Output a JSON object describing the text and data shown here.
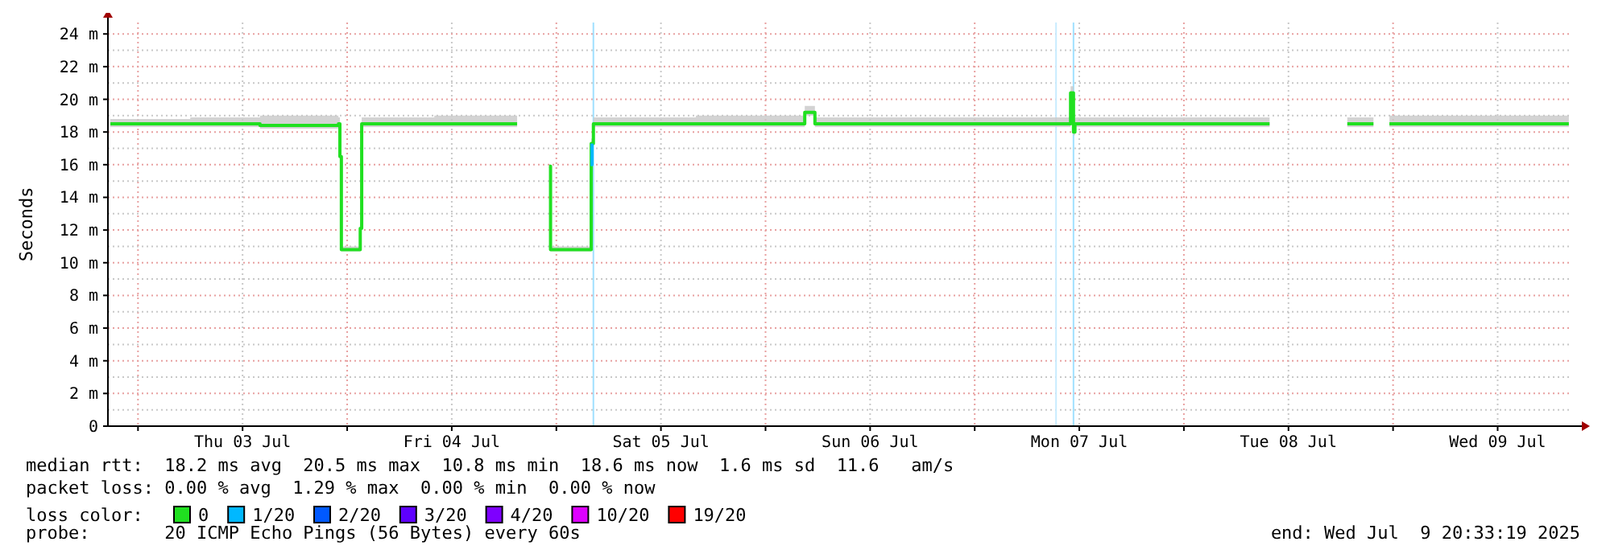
{
  "chart_data": {
    "type": "line",
    "ylabel": "Seconds",
    "ylim": [
      0,
      24.7
    ],
    "yticks": [
      0,
      {
        "value": 2,
        "label": "2 m"
      },
      {
        "value": 4,
        "label": "4 m"
      },
      {
        "value": 6,
        "label": "6 m"
      },
      {
        "value": 8,
        "label": "8 m"
      },
      {
        "value": 10,
        "label": "10 m"
      },
      {
        "value": 12,
        "label": "12 m"
      },
      {
        "value": 14,
        "label": "14 m"
      },
      {
        "value": 16,
        "label": "16 m"
      },
      {
        "value": 18,
        "label": "18 m"
      },
      {
        "value": 20,
        "label": "20 m"
      },
      {
        "value": 22,
        "label": "22 m"
      },
      {
        "value": 24,
        "label": "24 m"
      }
    ],
    "xlim": [
      "2025-07-02T20:33",
      "2025-07-09T20:33"
    ],
    "xticks": [
      {
        "value": "2025-07-03T00:00",
        "label": null
      },
      {
        "value": "2025-07-03T12:00",
        "label": "Thu 03 Jul"
      },
      {
        "value": "2025-07-04T00:00",
        "label": null
      },
      {
        "value": "2025-07-04T12:00",
        "label": "Fri 04 Jul"
      },
      {
        "value": "2025-07-05T00:00",
        "label": null
      },
      {
        "value": "2025-07-05T12:00",
        "label": "Sat 05 Jul"
      },
      {
        "value": "2025-07-06T00:00",
        "label": null
      },
      {
        "value": "2025-07-06T12:00",
        "label": "Sun 06 Jul"
      },
      {
        "value": "2025-07-07T00:00",
        "label": null
      },
      {
        "value": "2025-07-07T12:00",
        "label": "Mon 07 Jul"
      },
      {
        "value": "2025-07-08T00:00",
        "label": null
      },
      {
        "value": "2025-07-08T12:00",
        "label": "Tue 08 Jul"
      },
      {
        "value": "2025-07-09T00:00",
        "label": null
      },
      {
        "value": "2025-07-09T12:00",
        "label": "Wed 09 Jul"
      }
    ],
    "grid": true,
    "legend": "bottom",
    "legend_title": "loss color:",
    "line_style": "solid",
    "marker": "none",
    "x": [
      "2025-07-02T20:50",
      "2025-07-03T06:00",
      "2025-07-03T14:00",
      "2025-07-03T23:00",
      "2025-07-03T23:10",
      "2025-07-03T23:20",
      "2025-07-04T01:20",
      "2025-07-04T01:30",
      "2025-07-04T01:40",
      "2025-07-04T10:00",
      "2025-07-04T19:30",
      "2025-07-04T21:00",
      "2025-07-04T23:10",
      "2025-07-04T23:20",
      "2025-07-05T03:50",
      "2025-07-05T04:00",
      "2025-07-05T04:15",
      "2025-07-05T16:00",
      "2025-07-06T04:20",
      "2025-07-06T04:30",
      "2025-07-06T05:30",
      "2025-07-06T05:40",
      "2025-07-06T20:00",
      "2025-07-07T10:50",
      "2025-07-07T11:00",
      "2025-07-07T11:20",
      "2025-07-07T11:30",
      "2025-07-08T00:00",
      "2025-07-08T09:50",
      "2025-07-08T14:00",
      "2025-07-08T18:45",
      "2025-07-08T21:45",
      "2025-07-08T22:30",
      "2025-07-08T23:35",
      "2025-07-09T10:00",
      "2025-07-09T20:10"
    ],
    "series": [
      {
        "name": "0",
        "color": "#20e020",
        "values": [
          18.5,
          18.5,
          18.4,
          18.5,
          16.5,
          10.8,
          10.8,
          12.1,
          18.5,
          18.5,
          18.5,
          null,
          15.9,
          10.8,
          10.8,
          17.3,
          18.5,
          18.5,
          18.5,
          19.2,
          19.2,
          18.5,
          18.5,
          18.5,
          20.4,
          18.0,
          18.5,
          18.5,
          18.5,
          null,
          18.5,
          18.5,
          null,
          18.5,
          18.5,
          18.5
        ],
        "lower": [
          18.3,
          18.3,
          18.2,
          18.3,
          16.3,
          10.7,
          10.7,
          12.0,
          18.3,
          18.3,
          18.3,
          null,
          15.8,
          10.7,
          10.7,
          17.1,
          18.3,
          18.3,
          18.3,
          19.0,
          19.0,
          18.3,
          18.3,
          18.3,
          19.5,
          17.8,
          18.3,
          18.3,
          18.3,
          null,
          18.3,
          18.3,
          null,
          18.3,
          18.3,
          18.3
        ],
        "upper": [
          18.8,
          18.9,
          19.0,
          18.9,
          16.8,
          11.0,
          11.0,
          12.4,
          18.9,
          19.0,
          18.9,
          null,
          16.0,
          11.0,
          11.0,
          17.6,
          18.9,
          19.0,
          18.9,
          19.6,
          19.6,
          18.9,
          18.9,
          19.2,
          20.8,
          18.8,
          18.9,
          18.9,
          18.9,
          null,
          18.9,
          19.0,
          null,
          19.0,
          19.0,
          18.9
        ]
      },
      {
        "name": "1/20",
        "color": "#00b8ff",
        "x": [
          "2025-07-05T03:55",
          "2025-07-05T04:05"
        ],
        "values": [
          16.0,
          17.3
        ]
      },
      {
        "name": "2/20",
        "color": "#0059ff",
        "values": [
          null,
          null,
          null,
          null,
          null,
          null,
          null,
          null,
          null,
          null,
          null,
          null,
          null,
          null,
          null,
          null,
          null,
          null,
          null,
          null,
          null,
          null,
          null,
          null,
          null,
          null,
          null,
          null,
          null,
          null,
          null,
          null,
          null,
          null,
          null,
          null
        ]
      },
      {
        "name": "3/20",
        "color": "#5e00ff",
        "values": [
          null,
          null,
          null,
          null,
          null,
          null,
          null,
          null,
          null,
          null,
          null,
          null,
          null,
          null,
          null,
          null,
          null,
          null,
          null,
          null,
          null,
          null,
          null,
          null,
          null,
          null,
          null,
          null,
          null,
          null,
          null,
          null,
          null,
          null,
          null,
          null
        ]
      },
      {
        "name": "4/20",
        "color": "#7e00ff",
        "values": [
          null,
          null,
          null,
          null,
          null,
          null,
          null,
          null,
          null,
          null,
          null,
          null,
          null,
          null,
          null,
          null,
          null,
          null,
          null,
          null,
          null,
          null,
          null,
          null,
          null,
          null,
          null,
          null,
          null,
          null,
          null,
          null,
          null,
          null,
          null,
          null
        ]
      },
      {
        "name": "10/20",
        "color": "#dd00ff",
        "values": [
          null,
          null,
          null,
          null,
          null,
          null,
          null,
          null,
          null,
          null,
          null,
          null,
          null,
          null,
          null,
          null,
          null,
          null,
          null,
          null,
          null,
          null,
          null,
          null,
          null,
          null,
          null,
          null,
          null,
          null,
          null,
          null,
          null,
          null,
          null,
          null
        ]
      },
      {
        "name": "19/20",
        "color": "#ff0000",
        "values": [
          null,
          null,
          null,
          null,
          null,
          null,
          null,
          null,
          null,
          null,
          null,
          null,
          null,
          null,
          null,
          null,
          null,
          null,
          null,
          null,
          null,
          null,
          null,
          null,
          null,
          null,
          null,
          null,
          null,
          null,
          null,
          null,
          null,
          null,
          null,
          null
        ]
      }
    ],
    "ref_lines": [
      {
        "axis": "x",
        "value": "2025-07-05T04:15",
        "color": "#a0e0ff"
      },
      {
        "axis": "x",
        "value": "2025-07-07T09:20",
        "color": "#c8ecff"
      },
      {
        "axis": "x",
        "value": "2025-07-07T11:20",
        "color": "#a0e0ff"
      }
    ],
    "annotations": [
      "median rtt:  18.2 ms avg  20.5 ms max  10.8 ms min  18.6 ms now  1.6 ms sd  11.6   am/s",
      "packet loss: 0.00 % avg  1.29 % max  0.00 % min  0.00 % now",
      "probe:       20 ICMP Echo Pings (56 Bytes) every 60s",
      "end: Wed Jul  9 20:33:19 2025"
    ]
  }
}
